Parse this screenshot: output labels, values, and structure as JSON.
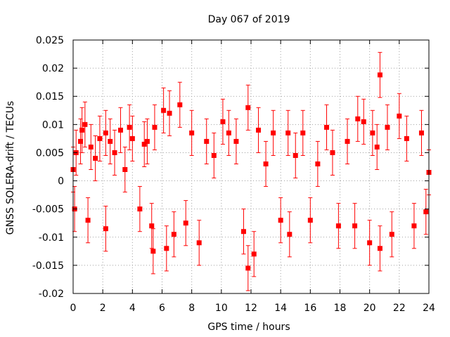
{
  "chart_data": {
    "type": "scatter",
    "title": "Day 067 of 2019",
    "xlabel": "GPS time / hours",
    "ylabel": "GNSS SOLERA-drift / TECUs",
    "xlim": [
      0,
      24
    ],
    "ylim": [
      -0.02,
      0.025
    ],
    "xticks": [
      "0",
      "2",
      "4",
      "6",
      "8",
      "10",
      "12",
      "14",
      "16",
      "18",
      "20",
      "22",
      "24"
    ],
    "yticks": [
      "-0.02",
      "-0.015",
      "-0.01",
      "-0.005",
      "0",
      "0.005",
      "0.01",
      "0.015",
      "0.02",
      "0.025"
    ],
    "grid": true,
    "error_bars": true,
    "marker_color": "#ff0000",
    "series": [
      {
        "points": [
          [
            0.0,
            0.002
          ],
          [
            0.1,
            -0.005
          ],
          [
            0.2,
            0.005
          ],
          [
            0.5,
            0.007
          ],
          [
            0.6,
            0.009
          ],
          [
            0.8,
            0.01
          ],
          [
            1.0,
            -0.007
          ],
          [
            1.2,
            0.006
          ],
          [
            1.5,
            0.004
          ],
          [
            1.8,
            0.0075
          ],
          [
            2.2,
            0.0085
          ],
          [
            2.2,
            -0.0085
          ],
          [
            2.5,
            0.007
          ],
          [
            2.8,
            0.005
          ],
          [
            3.2,
            0.009
          ],
          [
            3.5,
            0.002
          ],
          [
            3.8,
            0.0095
          ],
          [
            4.0,
            0.0075
          ],
          [
            4.5,
            -0.005
          ],
          [
            4.8,
            0.0065
          ],
          [
            5.0,
            0.007
          ],
          [
            5.3,
            -0.008
          ],
          [
            5.4,
            -0.0125
          ],
          [
            5.5,
            0.0095
          ],
          [
            6.1,
            0.0125
          ],
          [
            6.3,
            -0.012
          ],
          [
            6.5,
            0.012
          ],
          [
            6.8,
            -0.0095
          ],
          [
            7.2,
            0.0135
          ],
          [
            7.6,
            -0.0075
          ],
          [
            8.0,
            0.0085
          ],
          [
            8.5,
            -0.011
          ],
          [
            9.0,
            0.007
          ],
          [
            9.5,
            0.0045
          ],
          [
            10.1,
            0.0105
          ],
          [
            10.5,
            0.0085
          ],
          [
            11.0,
            0.007
          ],
          [
            11.5,
            -0.009
          ],
          [
            11.8,
            0.013
          ],
          [
            11.8,
            -0.0155
          ],
          [
            12.2,
            -0.013
          ],
          [
            12.5,
            0.009
          ],
          [
            13.0,
            0.003
          ],
          [
            13.5,
            0.0085
          ],
          [
            14.0,
            -0.007
          ],
          [
            14.5,
            0.0085
          ],
          [
            14.6,
            -0.0095
          ],
          [
            15.0,
            0.0045
          ],
          [
            15.5,
            0.0085
          ],
          [
            16.0,
            -0.007
          ],
          [
            16.5,
            0.003
          ],
          [
            17.1,
            0.0095
          ],
          [
            17.5,
            0.005
          ],
          [
            17.9,
            -0.008
          ],
          [
            18.5,
            0.007
          ],
          [
            19.0,
            -0.008
          ],
          [
            19.2,
            0.011
          ],
          [
            19.6,
            0.0105
          ],
          [
            20.0,
            -0.011
          ],
          [
            20.2,
            0.0085
          ],
          [
            20.5,
            0.006
          ],
          [
            20.7,
            0.0188
          ],
          [
            20.7,
            -0.012
          ],
          [
            21.2,
            0.0095
          ],
          [
            21.5,
            -0.0095
          ],
          [
            22.0,
            0.0115
          ],
          [
            22.5,
            0.0075
          ],
          [
            23.0,
            -0.008
          ],
          [
            23.5,
            0.0085
          ],
          [
            23.8,
            -0.0055
          ],
          [
            24.0,
            0.0015
          ]
        ]
      }
    ]
  }
}
